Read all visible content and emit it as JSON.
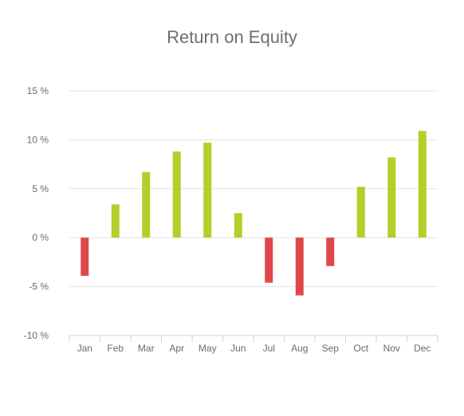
{
  "chart_data": {
    "type": "bar",
    "title": "Return on Equity",
    "xlabel": "",
    "ylabel": "",
    "categories": [
      "Jan",
      "Feb",
      "Mar",
      "Apr",
      "May",
      "Jun",
      "Jul",
      "Aug",
      "Sep",
      "Oct",
      "Nov",
      "Dec"
    ],
    "values": [
      -3.9,
      3.4,
      6.7,
      8.8,
      9.7,
      2.5,
      -4.6,
      -5.9,
      -2.9,
      5.2,
      8.2,
      10.9
    ],
    "ylim": [
      -10,
      15
    ],
    "yticks": [
      15,
      10,
      5,
      0,
      -5,
      -10
    ],
    "ytick_labels": [
      "15 %",
      "10 %",
      "5 %",
      "0 %",
      "-5 %",
      "-10 %"
    ],
    "grid": true,
    "legend": "none",
    "colors": {
      "positive": "#b2cf2a",
      "negative": "#e0474c",
      "grid": "#e3e3e3",
      "axis": "#c8d3dc",
      "text": "#6b6b6b"
    }
  }
}
